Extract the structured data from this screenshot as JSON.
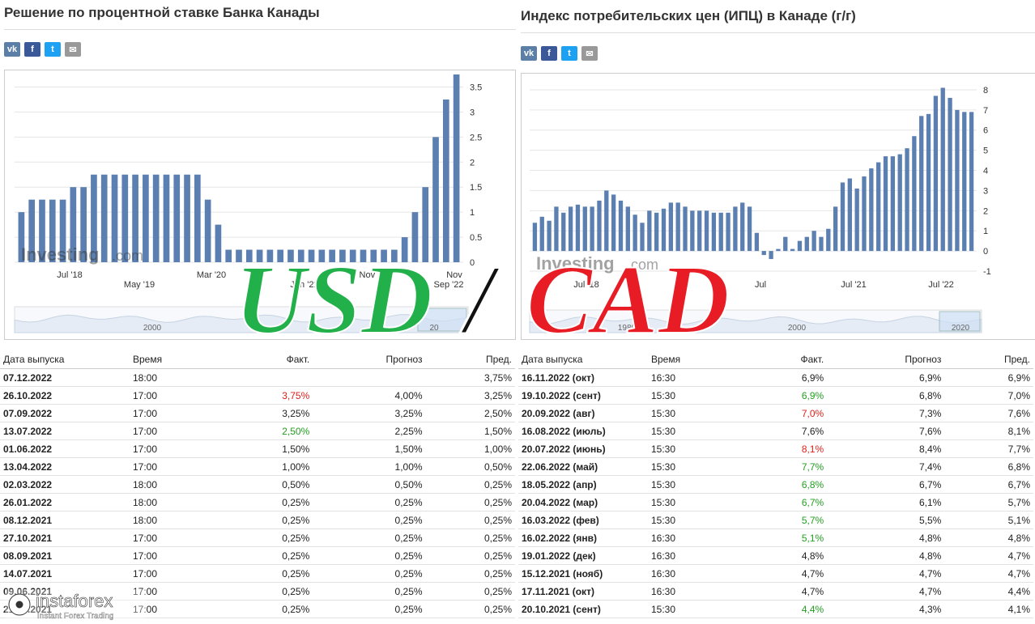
{
  "left": {
    "title": "Решение по процентной ставке Банка Канады",
    "social": [
      {
        "icon": "vk-icon",
        "glyph": "vk",
        "color": "#5b7fa6"
      },
      {
        "icon": "facebook-icon",
        "glyph": "f",
        "color": "#3b5998"
      },
      {
        "icon": "twitter-icon",
        "glyph": "t",
        "color": "#1da1f2"
      },
      {
        "icon": "mail-icon",
        "glyph": "✉",
        "color": "#999999"
      }
    ],
    "watermark": {
      "brand": "Investing",
      "suffix": ".com"
    },
    "nav_labels": [
      "2000",
      "20"
    ],
    "table": {
      "headers": [
        "Дата выпуска",
        "Время",
        "Факт.",
        "Прогноз",
        "Пред."
      ],
      "rows": [
        [
          "07.12.2022",
          "18:00",
          "",
          "",
          "3,75%"
        ],
        [
          "26.10.2022",
          "17:00",
          "3,75%",
          "4,00%",
          "3,25%"
        ],
        [
          "07.09.2022",
          "17:00",
          "3,25%",
          "3,25%",
          "2,50%"
        ],
        [
          "13.07.2022",
          "17:00",
          "2,50%",
          "2,25%",
          "1,50%"
        ],
        [
          "01.06.2022",
          "17:00",
          "1,50%",
          "1,50%",
          "1,00%"
        ],
        [
          "13.04.2022",
          "17:00",
          "1,00%",
          "1,00%",
          "0,50%"
        ],
        [
          "02.03.2022",
          "18:00",
          "0,50%",
          "0,50%",
          "0,25%"
        ],
        [
          "26.01.2022",
          "18:00",
          "0,25%",
          "0,25%",
          "0,25%"
        ],
        [
          "08.12.2021",
          "18:00",
          "0,25%",
          "0,25%",
          "0,25%"
        ],
        [
          "27.10.2021",
          "17:00",
          "0,25%",
          "0,25%",
          "0,25%"
        ],
        [
          "08.09.2021",
          "17:00",
          "0,25%",
          "0,25%",
          "0,25%"
        ],
        [
          "14.07.2021",
          "17:00",
          "0,25%",
          "0,25%",
          "0,25%"
        ],
        [
          "09.06.2021",
          "17:00",
          "0,25%",
          "0,25%",
          "0,25%"
        ],
        [
          "21.04.2021",
          "17:00",
          "0,25%",
          "0,25%",
          "0,25%"
        ]
      ],
      "actual_colors": [
        "",
        "red",
        "",
        "green",
        "",
        "",
        "",
        "",
        "",
        "",
        "",
        "",
        "",
        ""
      ]
    }
  },
  "right": {
    "title": "Индекс потребительских цен (ИПЦ) в Канаде (г/г)",
    "social": [
      {
        "icon": "vk-icon",
        "glyph": "vk",
        "color": "#5b7fa6"
      },
      {
        "icon": "facebook-icon",
        "glyph": "f",
        "color": "#3b5998"
      },
      {
        "icon": "twitter-icon",
        "glyph": "t",
        "color": "#1da1f2"
      },
      {
        "icon": "mail-icon",
        "glyph": "✉",
        "color": "#999999"
      }
    ],
    "watermark": {
      "brand": "Investing",
      "suffix": ".com"
    },
    "nav_labels": [
      "1980",
      "2000",
      "2020"
    ],
    "table": {
      "headers": [
        "Дата выпуска",
        "Время",
        "Факт.",
        "Прогноз",
        "Пред."
      ],
      "rows": [
        [
          "16.11.2022 (окт)",
          "16:30",
          "6,9%",
          "6,9%",
          "6,9%"
        ],
        [
          "19.10.2022 (сент)",
          "15:30",
          "6,9%",
          "6,8%",
          "7,0%"
        ],
        [
          "20.09.2022 (авг)",
          "15:30",
          "7,0%",
          "7,3%",
          "7,6%"
        ],
        [
          "16.08.2022 (июль)",
          "15:30",
          "7,6%",
          "7,6%",
          "8,1%"
        ],
        [
          "20.07.2022 (июнь)",
          "15:30",
          "8,1%",
          "8,4%",
          "7,7%"
        ],
        [
          "22.06.2022 (май)",
          "15:30",
          "7,7%",
          "7,4%",
          "6,8%"
        ],
        [
          "18.05.2022 (апр)",
          "15:30",
          "6,8%",
          "6,7%",
          "6,7%"
        ],
        [
          "20.04.2022 (мар)",
          "15:30",
          "6,7%",
          "6,1%",
          "5,7%"
        ],
        [
          "16.03.2022 (фев)",
          "15:30",
          "5,7%",
          "5,5%",
          "5,1%"
        ],
        [
          "16.02.2022 (янв)",
          "16:30",
          "5,1%",
          "4,8%",
          "4,8%"
        ],
        [
          "19.01.2022 (дек)",
          "16:30",
          "4,8%",
          "4,8%",
          "4,7%"
        ],
        [
          "15.12.2021 (нояб)",
          "16:30",
          "4,7%",
          "4,7%",
          "4,7%"
        ],
        [
          "17.11.2021 (окт)",
          "16:30",
          "4,7%",
          "4,7%",
          "4,4%"
        ],
        [
          "20.10.2021 (сент)",
          "15:30",
          "4,4%",
          "4,3%",
          "4,1%"
        ]
      ],
      "actual_colors": [
        "",
        "green",
        "red",
        "",
        "red",
        "green",
        "green",
        "green",
        "green",
        "green",
        "",
        "",
        "",
        "green"
      ]
    }
  },
  "overlay": {
    "left_text": "USD",
    "slash": "/",
    "right_text": "CAD",
    "left_color": "#22b04a",
    "right_color": "#e81c24"
  },
  "brand": {
    "name": "instaforex",
    "tagline": "Instant Forex Trading"
  },
  "chart_data": [
    {
      "type": "bar",
      "title": "Решение по процентной ставке Банка Канады",
      "bar_color": "#5b7fb0",
      "ylim": [
        0,
        3.75
      ],
      "y_ticks": [
        "0",
        "0.5",
        "1",
        "1.5",
        "2",
        "2.5",
        "3",
        "3.5"
      ],
      "x_ticks": [
        "Jul '18",
        "May '19",
        "Mar '20",
        "Jan '21",
        "Nov '21",
        "Nov",
        "Sep '22"
      ],
      "values": [
        1.0,
        1.25,
        1.25,
        1.25,
        1.25,
        1.5,
        1.5,
        1.75,
        1.75,
        1.75,
        1.75,
        1.75,
        1.75,
        1.75,
        1.75,
        1.75,
        1.75,
        1.75,
        1.25,
        0.75,
        0.25,
        0.25,
        0.25,
        0.25,
        0.25,
        0.25,
        0.25,
        0.25,
        0.25,
        0.25,
        0.25,
        0.25,
        0.25,
        0.25,
        0.25,
        0.25,
        0.25,
        0.5,
        1.0,
        1.5,
        2.5,
        3.25,
        3.75
      ]
    },
    {
      "type": "bar",
      "title": "Индекс потребительских цен (ИПЦ) в Канаде (г/г)",
      "bar_color": "#5b7fb0",
      "ylim": [
        -1,
        8.4
      ],
      "y_ticks": [
        "-1",
        "0",
        "1",
        "2",
        "3",
        "4",
        "5",
        "6",
        "7",
        "8"
      ],
      "x_ticks": [
        "Jul '18",
        "'19",
        "Jul",
        "Jul '21",
        "Jul '22"
      ],
      "values": [
        1.4,
        1.7,
        1.5,
        2.2,
        1.9,
        2.2,
        2.3,
        2.2,
        2.2,
        2.5,
        3.0,
        2.8,
        2.5,
        2.2,
        1.8,
        1.4,
        2.0,
        1.9,
        2.1,
        2.4,
        2.4,
        2.2,
        2.0,
        2.0,
        2.0,
        1.9,
        1.9,
        1.9,
        2.2,
        2.4,
        2.2,
        0.9,
        -0.2,
        -0.4,
        0.1,
        0.7,
        0.1,
        0.5,
        0.7,
        1.0,
        0.7,
        1.1,
        2.2,
        3.4,
        3.6,
        3.1,
        3.7,
        4.1,
        4.4,
        4.7,
        4.7,
        4.8,
        5.1,
        5.7,
        6.7,
        6.8,
        7.7,
        8.1,
        7.6,
        7.0,
        6.9,
        6.9
      ]
    }
  ]
}
